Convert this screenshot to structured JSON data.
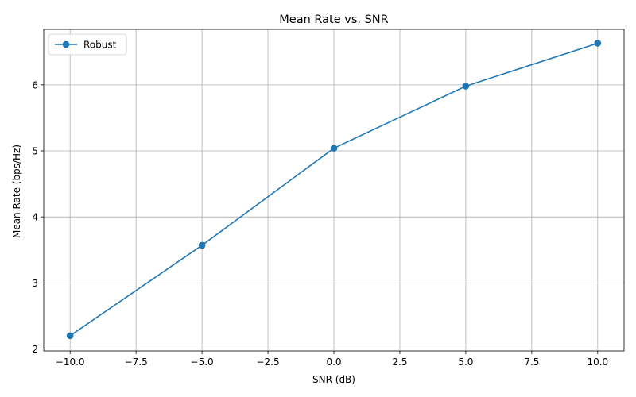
{
  "chart_data": {
    "type": "line",
    "title": "Mean Rate vs. SNR",
    "xlabel": "SNR (dB)",
    "ylabel": "Mean Rate (bps/Hz)",
    "xlim": [
      -11,
      11
    ],
    "ylim": [
      1.97,
      6.84
    ],
    "xticks": [
      -10.0,
      -7.5,
      -5.0,
      -2.5,
      0.0,
      2.5,
      5.0,
      7.5,
      10.0
    ],
    "xtick_labels": [
      "−10.0",
      "−7.5",
      "−5.0",
      "−2.5",
      "0.0",
      "2.5",
      "5.0",
      "7.5",
      "10.0"
    ],
    "yticks": [
      2,
      3,
      4,
      5,
      6
    ],
    "ytick_labels": [
      "2",
      "3",
      "4",
      "5",
      "6"
    ],
    "grid": true,
    "legend_position": "top-left",
    "series": [
      {
        "name": "Robust",
        "color": "#1f77b4",
        "marker": "circle",
        "x": [
          -10,
          -5,
          0,
          5,
          10
        ],
        "y": [
          2.2,
          3.57,
          5.04,
          5.98,
          6.63
        ]
      }
    ]
  }
}
